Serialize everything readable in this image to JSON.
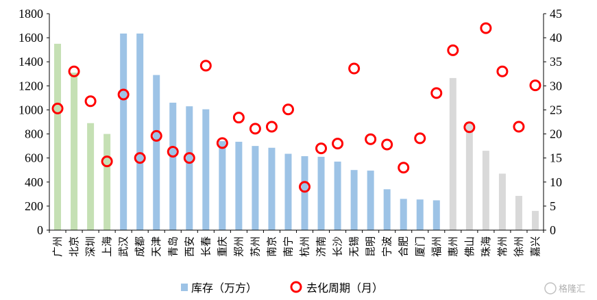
{
  "chart_data": {
    "type": "bar+scatter",
    "categories": [
      "广州",
      "北京",
      "深圳",
      "上海",
      "武汉",
      "成都",
      "天津",
      "青岛",
      "西安",
      "长春",
      "重庆",
      "郑州",
      "苏州",
      "南京",
      "南宁",
      "杭州",
      "济南",
      "长沙",
      "无锡",
      "昆明",
      "宁波",
      "合肥",
      "厦门",
      "福州",
      "惠州",
      "佛山",
      "珠海",
      "常州",
      "徐州",
      "嘉兴"
    ],
    "group_colors": [
      "#C5E0B4",
      "#C5E0B4",
      "#C5E0B4",
      "#C5E0B4",
      "#9DC3E6",
      "#9DC3E6",
      "#9DC3E6",
      "#9DC3E6",
      "#9DC3E6",
      "#9DC3E6",
      "#9DC3E6",
      "#9DC3E6",
      "#9DC3E6",
      "#9DC3E6",
      "#9DC3E6",
      "#9DC3E6",
      "#9DC3E6",
      "#9DC3E6",
      "#9DC3E6",
      "#9DC3E6",
      "#9DC3E6",
      "#9DC3E6",
      "#9DC3E6",
      "#9DC3E6",
      "#D9D9D9",
      "#D9D9D9",
      "#D9D9D9",
      "#D9D9D9",
      "#D9D9D9",
      "#D9D9D9"
    ],
    "series": [
      {
        "name": "库存（万方）",
        "axis": "left",
        "kind": "bar",
        "values": [
          1550,
          1310,
          890,
          800,
          1635,
          1635,
          1290,
          1060,
          1030,
          1005,
          740,
          735,
          700,
          685,
          635,
          615,
          610,
          570,
          500,
          495,
          340,
          260,
          255,
          248,
          1265,
          900,
          660,
          470,
          285,
          160
        ]
      },
      {
        "name": "去化周期（月）",
        "axis": "right",
        "kind": "marker",
        "color": "#FF0000",
        "values": [
          25.3,
          33,
          26.8,
          14.3,
          28.2,
          15,
          19.6,
          16.3,
          15,
          34.2,
          18.1,
          23.4,
          21.1,
          21.5,
          25.1,
          9,
          17,
          18,
          33.6,
          18.9,
          17.8,
          13,
          19.1,
          28.5,
          37.4,
          21.4,
          42,
          33,
          21.5,
          30.1
        ]
      }
    ],
    "y_left": {
      "min": 0,
      "max": 1800,
      "step": 200,
      "ticks": [
        "0",
        "200",
        "400",
        "600",
        "800",
        "1000",
        "1200",
        "1400",
        "1600",
        "1800"
      ]
    },
    "y_right": {
      "min": 0,
      "max": 45,
      "step": 5,
      "ticks": [
        "0",
        "5",
        "10",
        "15",
        "20",
        "25",
        "30",
        "35",
        "40",
        "45"
      ]
    },
    "legend": [
      "库存（万方）",
      "去化周期（月）"
    ],
    "legend_placement": "bottom-center",
    "grid": false
  },
  "watermark": "格隆汇"
}
